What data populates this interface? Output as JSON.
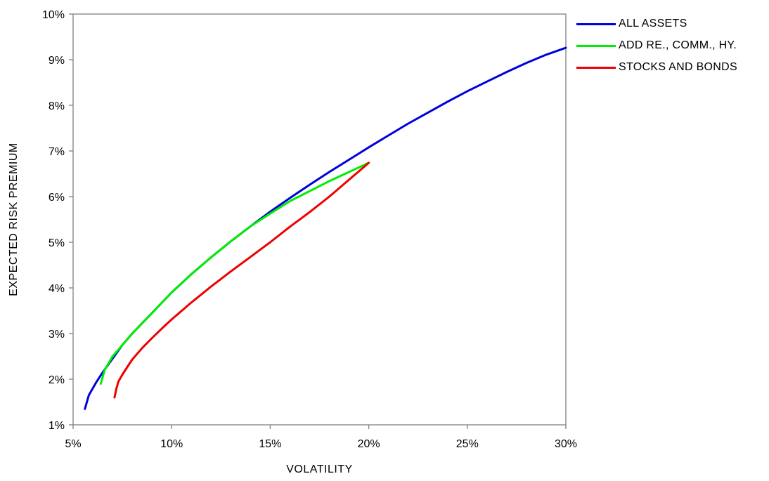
{
  "chart_data": {
    "type": "line",
    "xlabel": "VOLATILITY",
    "ylabel": "EXPECTED RISK PREMIUM",
    "xlim": [
      0.05,
      0.3
    ],
    "ylim": [
      0.01,
      0.1
    ],
    "x_ticks": [
      "5%",
      "10%",
      "15%",
      "20%",
      "25%",
      "30%"
    ],
    "x_tick_values": [
      0.05,
      0.1,
      0.15,
      0.2,
      0.25,
      0.3
    ],
    "y_ticks": [
      "1%",
      "2%",
      "3%",
      "4%",
      "5%",
      "6%",
      "7%",
      "8%",
      "9%",
      "10%"
    ],
    "y_tick_values": [
      0.01,
      0.02,
      0.03,
      0.04,
      0.05,
      0.06,
      0.07,
      0.08,
      0.09,
      0.1
    ],
    "grid": false,
    "legend_position": "right",
    "series": [
      {
        "name": "ALL ASSETS",
        "color": "#0000dd",
        "x": [
          0.056,
          0.057,
          0.058,
          0.06,
          0.062,
          0.065,
          0.07,
          0.075,
          0.08,
          0.09,
          0.1,
          0.11,
          0.12,
          0.13,
          0.14,
          0.15,
          0.16,
          0.17,
          0.18,
          0.19,
          0.2,
          0.21,
          0.22,
          0.23,
          0.24,
          0.25,
          0.26,
          0.27,
          0.28,
          0.29,
          0.3
        ],
        "y": [
          0.0135,
          0.015,
          0.0165,
          0.018,
          0.0195,
          0.0215,
          0.0245,
          0.0275,
          0.03,
          0.0345,
          0.039,
          0.043,
          0.0467,
          0.0502,
          0.0535,
          0.0567,
          0.0597,
          0.0626,
          0.0654,
          0.0681,
          0.0708,
          0.0734,
          0.076,
          0.0784,
          0.0808,
          0.0831,
          0.0852,
          0.0873,
          0.0893,
          0.0911,
          0.0926
        ]
      },
      {
        "name": "ADD RE., COMM., HY.",
        "color": "#00ee00",
        "x": [
          0.064,
          0.065,
          0.066,
          0.068,
          0.07,
          0.075,
          0.08,
          0.09,
          0.1,
          0.11,
          0.12,
          0.13,
          0.14,
          0.15,
          0.16,
          0.17,
          0.18,
          0.19,
          0.2
        ],
        "y": [
          0.019,
          0.0205,
          0.022,
          0.0235,
          0.025,
          0.0275,
          0.03,
          0.0345,
          0.039,
          0.043,
          0.0467,
          0.0502,
          0.0535,
          0.0563,
          0.059,
          0.0612,
          0.0634,
          0.0654,
          0.0674
        ]
      },
      {
        "name": "STOCKS AND BONDS",
        "color": "#ee0000",
        "x": [
          0.071,
          0.072,
          0.073,
          0.075,
          0.078,
          0.08,
          0.085,
          0.09,
          0.095,
          0.1,
          0.11,
          0.12,
          0.13,
          0.14,
          0.15,
          0.16,
          0.17,
          0.18,
          0.19,
          0.2
        ],
        "y": [
          0.016,
          0.018,
          0.0195,
          0.021,
          0.023,
          0.0243,
          0.0268,
          0.029,
          0.0311,
          0.0331,
          0.0368,
          0.0403,
          0.0436,
          0.0468,
          0.05,
          0.0534,
          0.0566,
          0.06,
          0.0637,
          0.0674
        ]
      }
    ]
  }
}
